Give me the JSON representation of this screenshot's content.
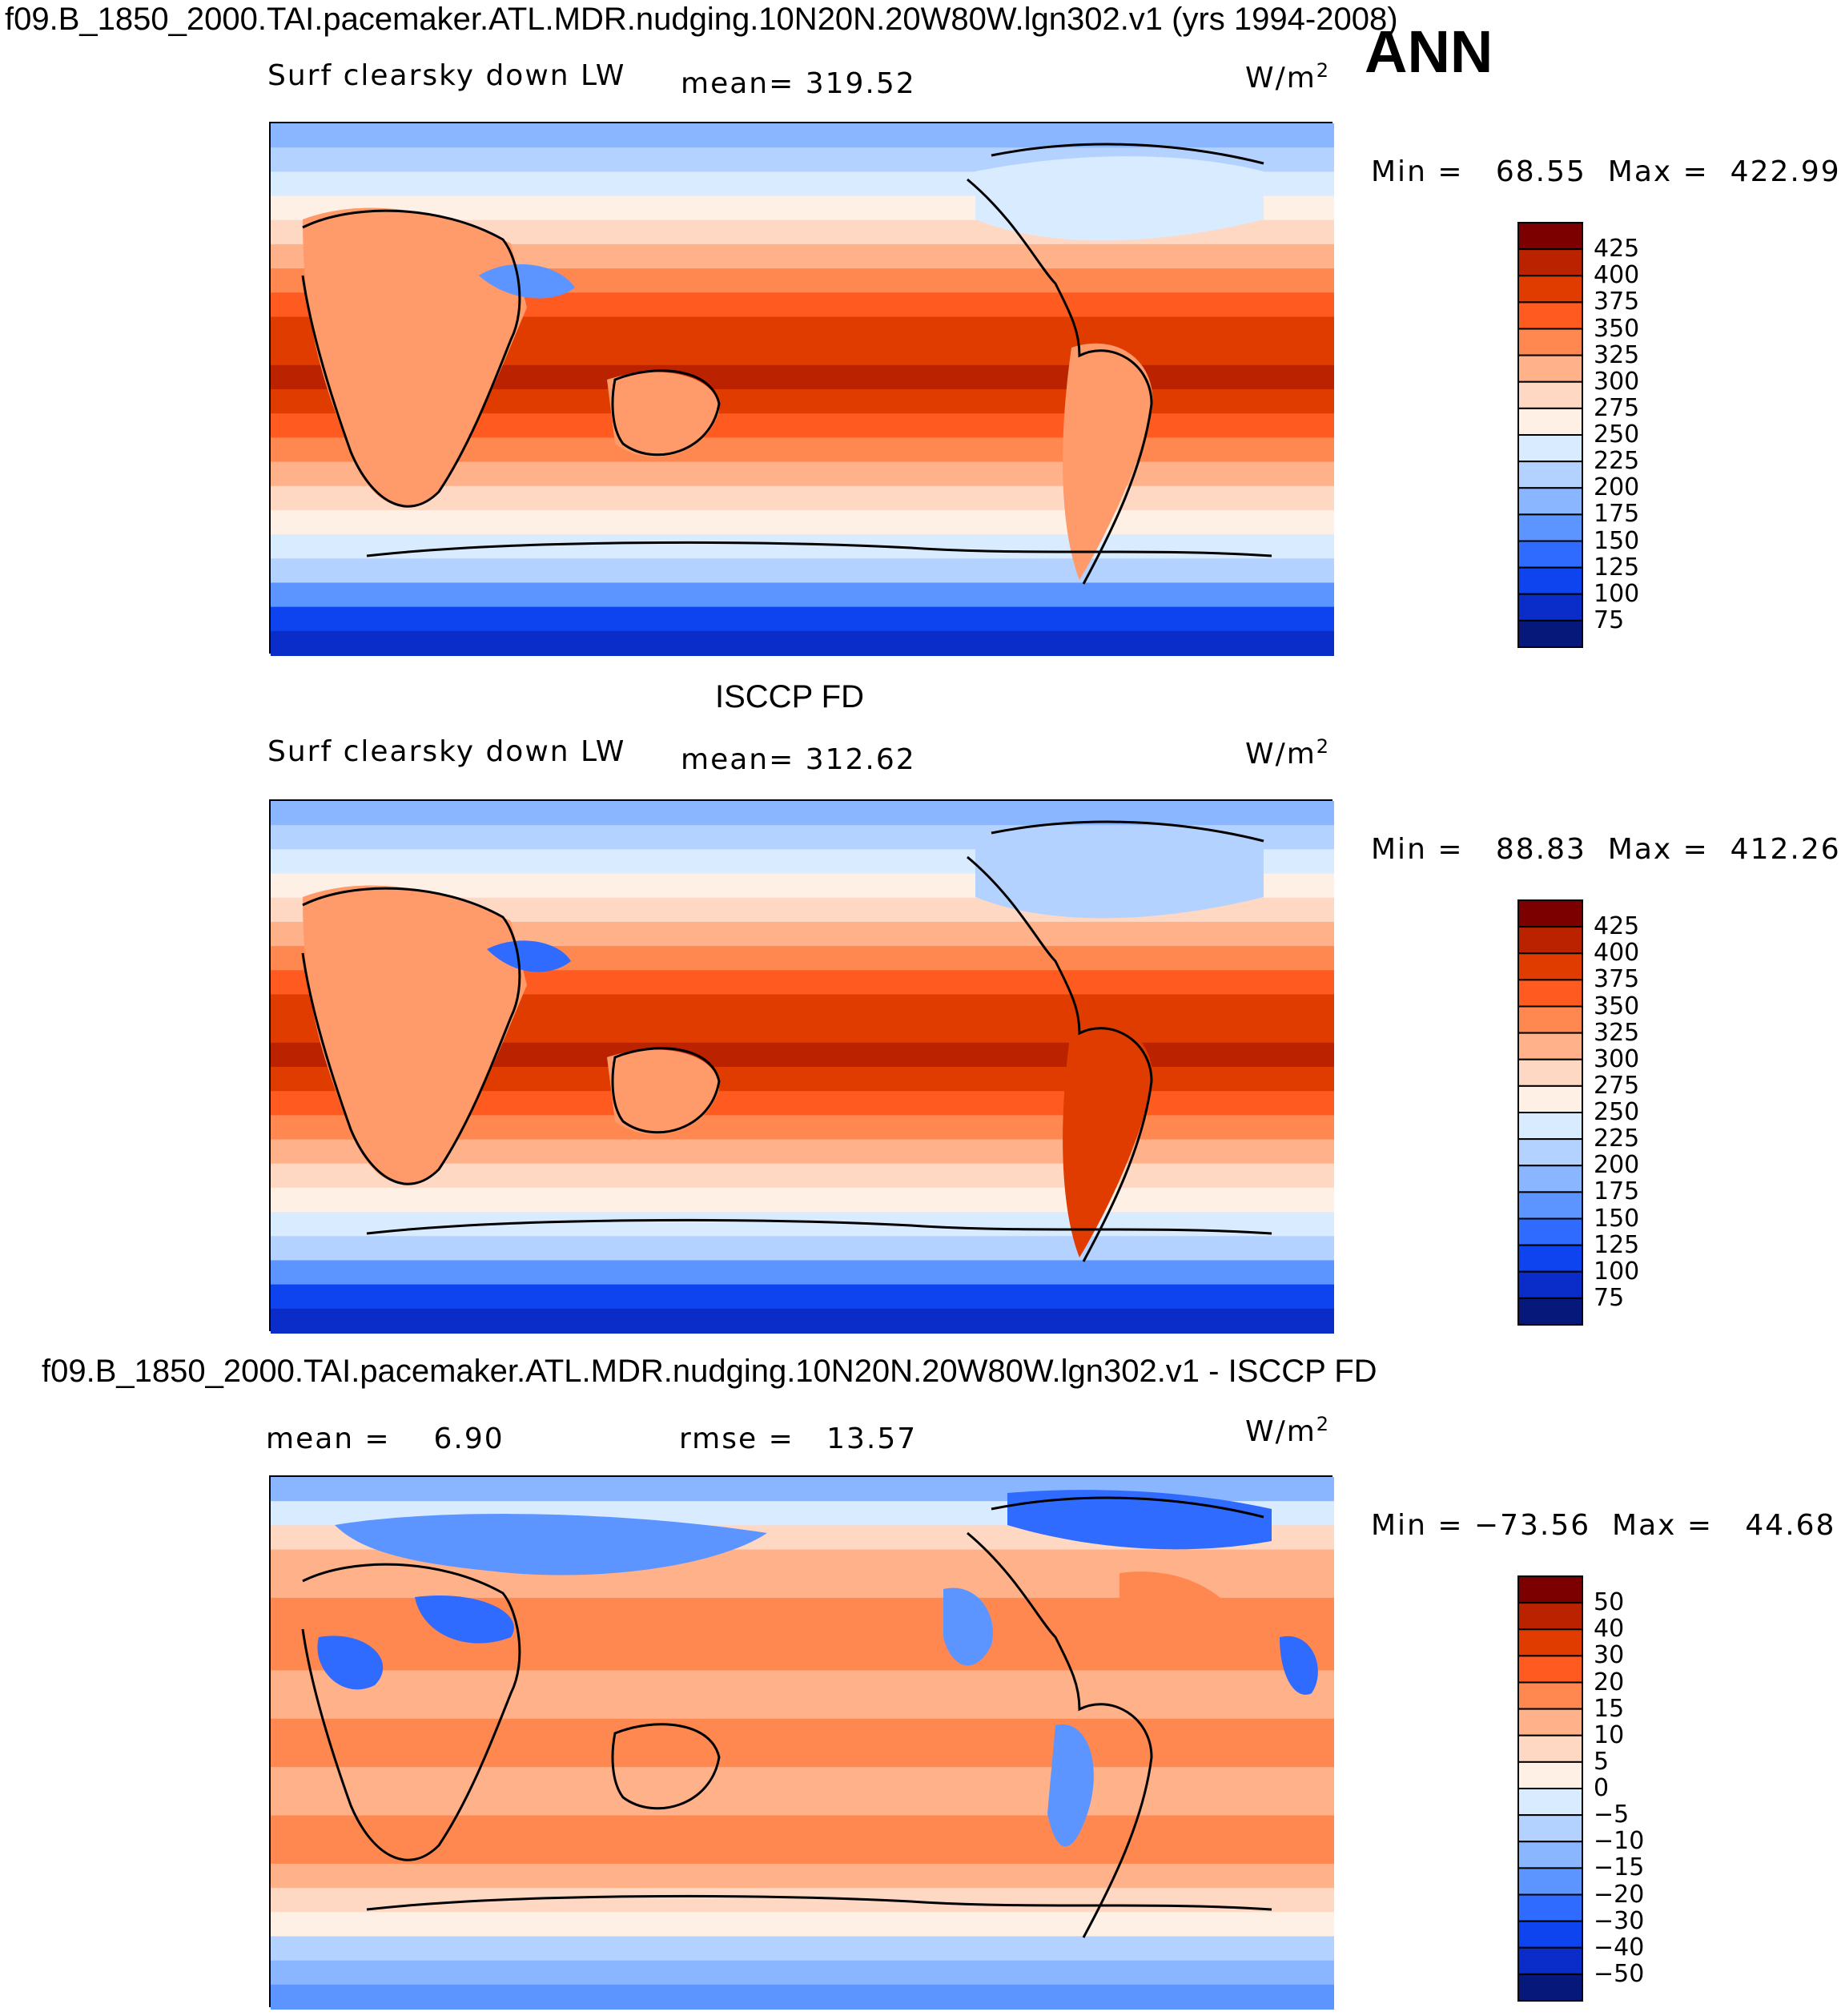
{
  "header": {
    "main_title": "f09.B_1850_2000.TAI.pacemaker.ATL.MDR.nudging.10N20N.20W80W.lgn302.v1 (yrs 1994-2008)",
    "season": "ANN"
  },
  "colors": {
    "ocean_warm": "#d93300",
    "ocean_mid": "#ff6a2e",
    "polar_cold": "#0a2fd0",
    "coast": "#000000"
  },
  "chart_data": [
    {
      "type": "heatmap",
      "title": "",
      "variable": "Surf clearsky down LW",
      "units": "W/m",
      "units_sup": "2",
      "mean_text": "mean= 319.52",
      "minmax_text": "Min =   68.55  Max =  422.99",
      "min": 68.55,
      "max": 422.99,
      "mean": 319.52,
      "colorbar": {
        "levels": [
          "425",
          "400",
          "375",
          "350",
          "325",
          "300",
          "275",
          "250",
          "225",
          "200",
          "175",
          "150",
          "125",
          "100",
          "75"
        ],
        "colors": [
          "#7d0000",
          "#bb2200",
          "#e03c00",
          "#ff5a1f",
          "#ff8850",
          "#ffb18a",
          "#ffd8c4",
          "#fff0e6",
          "#d8ebff",
          "#b4d2ff",
          "#8ab6ff",
          "#5c95ff",
          "#2f6bff",
          "#0e44f0",
          "#0a2dc9",
          "#06187a"
        ]
      }
    },
    {
      "type": "heatmap",
      "title": "ISCCP FD",
      "variable": "Surf clearsky down LW",
      "units": "W/m",
      "units_sup": "2",
      "mean_text": "mean= 312.62",
      "minmax_text": "Min =   88.83  Max =  412.26",
      "min": 88.83,
      "max": 412.26,
      "mean": 312.62,
      "colorbar": {
        "levels": [
          "425",
          "400",
          "375",
          "350",
          "325",
          "300",
          "275",
          "250",
          "225",
          "200",
          "175",
          "150",
          "125",
          "100",
          "75"
        ],
        "colors": [
          "#7d0000",
          "#bb2200",
          "#e03c00",
          "#ff5a1f",
          "#ff8850",
          "#ffb18a",
          "#ffd8c4",
          "#fff0e6",
          "#d8ebff",
          "#b4d2ff",
          "#8ab6ff",
          "#5c95ff",
          "#2f6bff",
          "#0e44f0",
          "#0a2dc9",
          "#06187a"
        ]
      }
    },
    {
      "type": "heatmap",
      "title": "f09.B_1850_2000.TAI.pacemaker.ATL.MDR.nudging.10N20N.20W80W.lgn302.v1 - ISCCP FD",
      "units": "W/m",
      "units_sup": "2",
      "mean_text": "mean =    6.90",
      "rmse_text": "rmse =   13.57",
      "minmax_text": "Min = −73.56  Max =   44.68",
      "min": -73.56,
      "max": 44.68,
      "mean": 6.9,
      "rmse": 13.57,
      "colorbar": {
        "levels": [
          "50",
          "40",
          "30",
          "20",
          "15",
          "10",
          "5",
          "0",
          "−5",
          "−10",
          "−15",
          "−20",
          "−30",
          "−40",
          "−50"
        ],
        "colors": [
          "#7d0000",
          "#bb2200",
          "#e03c00",
          "#ff5a1f",
          "#ff8850",
          "#ffb18a",
          "#ffd8c4",
          "#fff0e6",
          "#d8ebff",
          "#b4d2ff",
          "#8ab6ff",
          "#5c95ff",
          "#2f6bff",
          "#0e44f0",
          "#0a2dc9",
          "#06187a"
        ]
      }
    }
  ]
}
